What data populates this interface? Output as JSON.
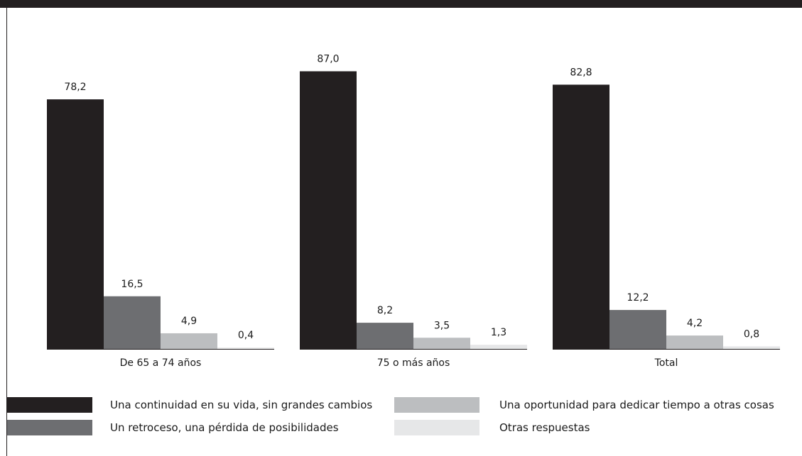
{
  "chart_data": {
    "type": "bar",
    "categories": [
      "De 65 a 74 años",
      "75 o más años",
      "Total"
    ],
    "series": [
      {
        "name": "Una continuidad en su vida, sin grandes cambios",
        "values": [
          78.2,
          87.0,
          82.8
        ],
        "labels": [
          "78,2",
          "87,0",
          "82,8"
        ],
        "color": "#231f20"
      },
      {
        "name": "Un retroceso, una pérdida de posibilidades",
        "values": [
          16.5,
          8.2,
          12.2
        ],
        "labels": [
          "16,5",
          "8,2",
          "12,2"
        ],
        "color": "#6d6e71"
      },
      {
        "name": "Una oportunidad para dedicar tiempo a otras cosas",
        "values": [
          4.9,
          3.5,
          4.2
        ],
        "labels": [
          "4,9",
          "3,5",
          "4,2"
        ],
        "color": "#bcbec0"
      },
      {
        "name": "Otras respuestas",
        "values": [
          0.4,
          1.3,
          0.8
        ],
        "labels": [
          "0,4",
          "1,3",
          "0,8"
        ],
        "color": "#e6e7e8"
      }
    ],
    "ylim": [
      0,
      100
    ],
    "grid": false,
    "legend_position": "bottom",
    "title": "",
    "xlabel": "",
    "ylabel": ""
  }
}
